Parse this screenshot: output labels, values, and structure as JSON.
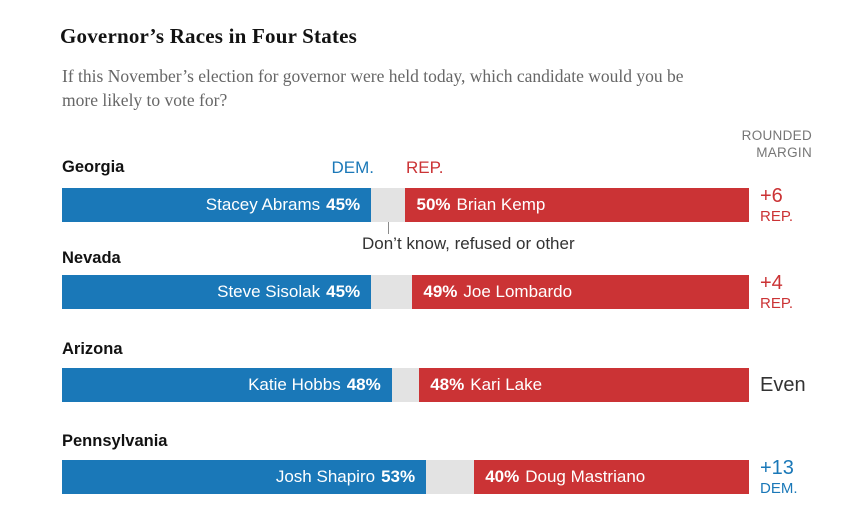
{
  "header": {
    "title": "Governor’s Races in Four States",
    "subtitle_lines": [
      "If this November’s election for governor were held today, which candidate would you be",
      "more likely to vote for?"
    ]
  },
  "margin_header_lines": [
    "ROUNDED",
    "MARGIN"
  ],
  "legend": {
    "dem": "DEM.",
    "rep": "REP."
  },
  "annotation": "Don’t know, refused or other",
  "colors": {
    "dem": "#1a78b8",
    "rep": "#cb3335",
    "other": "#e3e3e3",
    "even_text": "#333333",
    "header_gray": "#767676"
  },
  "chart_data": {
    "type": "bar",
    "subtype": "stacked-horizontal-100pct",
    "title": "Governor’s Races in Four States",
    "subtitle": "If this November’s election for governor were held today, which candidate would you be more likely to vote for?",
    "unit": "%",
    "legend": [
      "DEM.",
      "REP."
    ],
    "other_label": "Don’t know, refused or other",
    "margin_column_header": "ROUNDED MARGIN",
    "races": [
      {
        "state": "Georgia",
        "dem": {
          "name": "Stacey Abrams",
          "pct": 45,
          "pct_label": "45%"
        },
        "rep": {
          "name": "Brian Kemp",
          "pct": 50,
          "pct_label": "50%"
        },
        "other_pct": 5,
        "margin": {
          "value": "+6",
          "party": "REP.",
          "color": "#cb3335"
        }
      },
      {
        "state": "Nevada",
        "dem": {
          "name": "Steve Sisolak",
          "pct": 45,
          "pct_label": "45%"
        },
        "rep": {
          "name": "Joe Lombardo",
          "pct": 49,
          "pct_label": "49%"
        },
        "other_pct": 6,
        "margin": {
          "value": "+4",
          "party": "REP.",
          "color": "#cb3335"
        }
      },
      {
        "state": "Arizona",
        "dem": {
          "name": "Katie Hobbs",
          "pct": 48,
          "pct_label": "48%"
        },
        "rep": {
          "name": "Kari Lake",
          "pct": 48,
          "pct_label": "48%"
        },
        "other_pct": 4,
        "margin": {
          "value": "Even",
          "party": "",
          "color": "#333333"
        }
      },
      {
        "state": "Pennsylvania",
        "dem": {
          "name": "Josh Shapiro",
          "pct": 53,
          "pct_label": "53%"
        },
        "rep": {
          "name": "Doug Mastriano",
          "pct": 40,
          "pct_label": "40%"
        },
        "other_pct": 7,
        "margin": {
          "value": "+13",
          "party": "DEM.",
          "color": "#1a78b8"
        }
      }
    ]
  }
}
